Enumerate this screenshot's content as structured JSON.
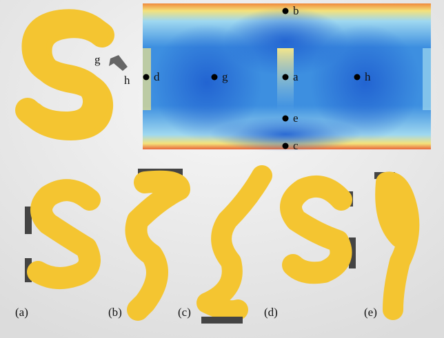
{
  "inset_labels": [
    "g",
    "h"
  ],
  "map_points": [
    "b",
    "d",
    "g",
    "a",
    "h",
    "e",
    "c"
  ],
  "panels": [
    "(a)",
    "(b)",
    "(c)",
    "(d)",
    "(e)"
  ]
}
